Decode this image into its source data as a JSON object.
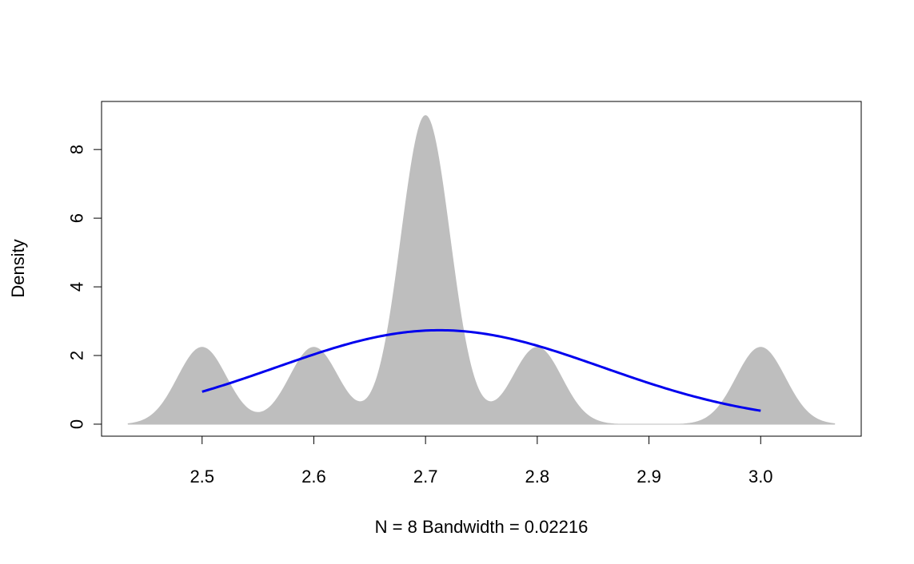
{
  "chart_data": {
    "type": "area",
    "title": "",
    "xlabel": "N = 8   Bandwidth = 0.02216",
    "ylabel": "Density",
    "xlim": [
      2.41,
      3.09
    ],
    "ylim": [
      -0.35,
      9.4
    ],
    "x_ticks": [
      2.5,
      2.6,
      2.7,
      2.8,
      2.9,
      3.0
    ],
    "x_tick_labels": [
      "2.5",
      "2.6",
      "2.7",
      "2.8",
      "2.9",
      "3.0"
    ],
    "y_ticks": [
      0,
      2,
      4,
      6,
      8
    ],
    "y_tick_labels": [
      "0",
      "2",
      "4",
      "6",
      "8"
    ],
    "grid": false,
    "series": [
      {
        "kind": "kernel-density-area",
        "color": "#bebebe",
        "sample": [
          2.5,
          2.6,
          2.7,
          2.7,
          2.7,
          2.7,
          2.8,
          3.0
        ],
        "bandwidth": 0.02216,
        "x_range": [
          2.4335,
          3.0665
        ]
      },
      {
        "kind": "normal-curve",
        "color": "#0000ee",
        "mean": 2.7125,
        "sd": 0.1458,
        "x_range": [
          2.5,
          3.0
        ]
      }
    ]
  }
}
